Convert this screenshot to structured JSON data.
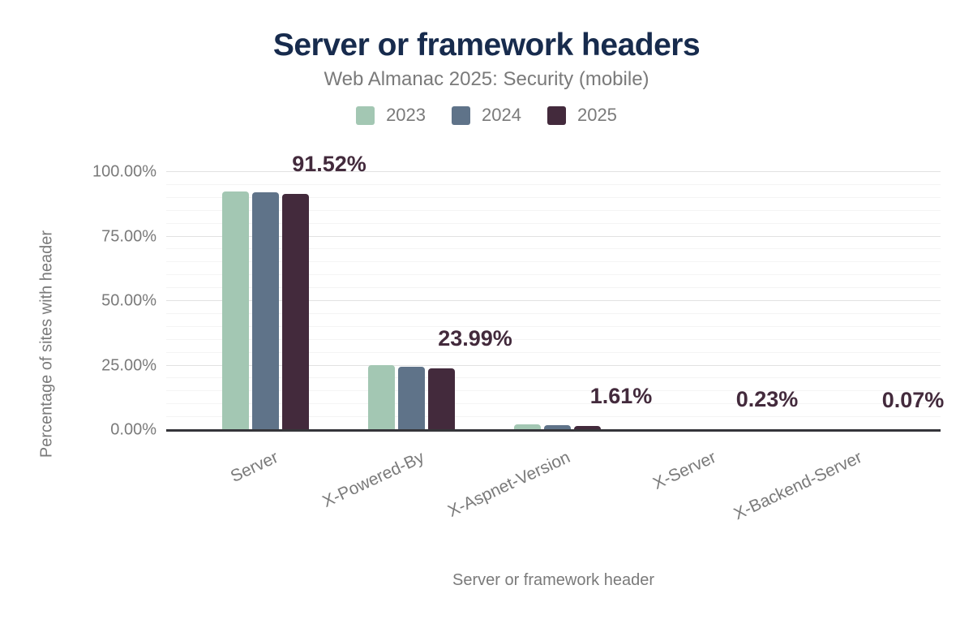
{
  "chart_data": {
    "type": "bar",
    "title": "Server or framework headers",
    "subtitle": "Web Almanac 2025: Security (mobile)",
    "xlabel": "Server or framework header",
    "ylabel": "Percentage of sites with header",
    "categories": [
      "Server",
      "X-Powered-By",
      "X-Aspnet-Version",
      "X-Server",
      "X-Backend-Server"
    ],
    "series": [
      {
        "name": "2023",
        "color": "#a3c7b3",
        "values": [
          92.6,
          25.2,
          2.1,
          0.3,
          0.1
        ]
      },
      {
        "name": "2024",
        "color": "#5f7389",
        "values": [
          92.0,
          24.6,
          1.8,
          0.27,
          0.08
        ]
      },
      {
        "name": "2025",
        "color": "#432a3c",
        "values": [
          91.52,
          23.99,
          1.61,
          0.23,
          0.07
        ]
      }
    ],
    "annotations": {
      "series": "2025",
      "labels": [
        "91.52%",
        "23.99%",
        "1.61%",
        "0.23%",
        "0.07%"
      ]
    },
    "y_axis": {
      "ticks": [
        {
          "value": 0,
          "label": "0.00%"
        },
        {
          "value": 25,
          "label": "25.00%"
        },
        {
          "value": 50,
          "label": "50.00%"
        },
        {
          "value": 75,
          "label": "75.00%"
        },
        {
          "value": 100,
          "label": "100.00%"
        }
      ],
      "ylim": [
        0,
        100
      ],
      "minor_grid_step": 5
    },
    "legend_position": "top",
    "grid": "horizontal",
    "colors": {
      "title": "#172b4d",
      "axis_text": "#7a7a7a",
      "axis_line": "#35353a",
      "annotation": "#432a3c"
    }
  }
}
